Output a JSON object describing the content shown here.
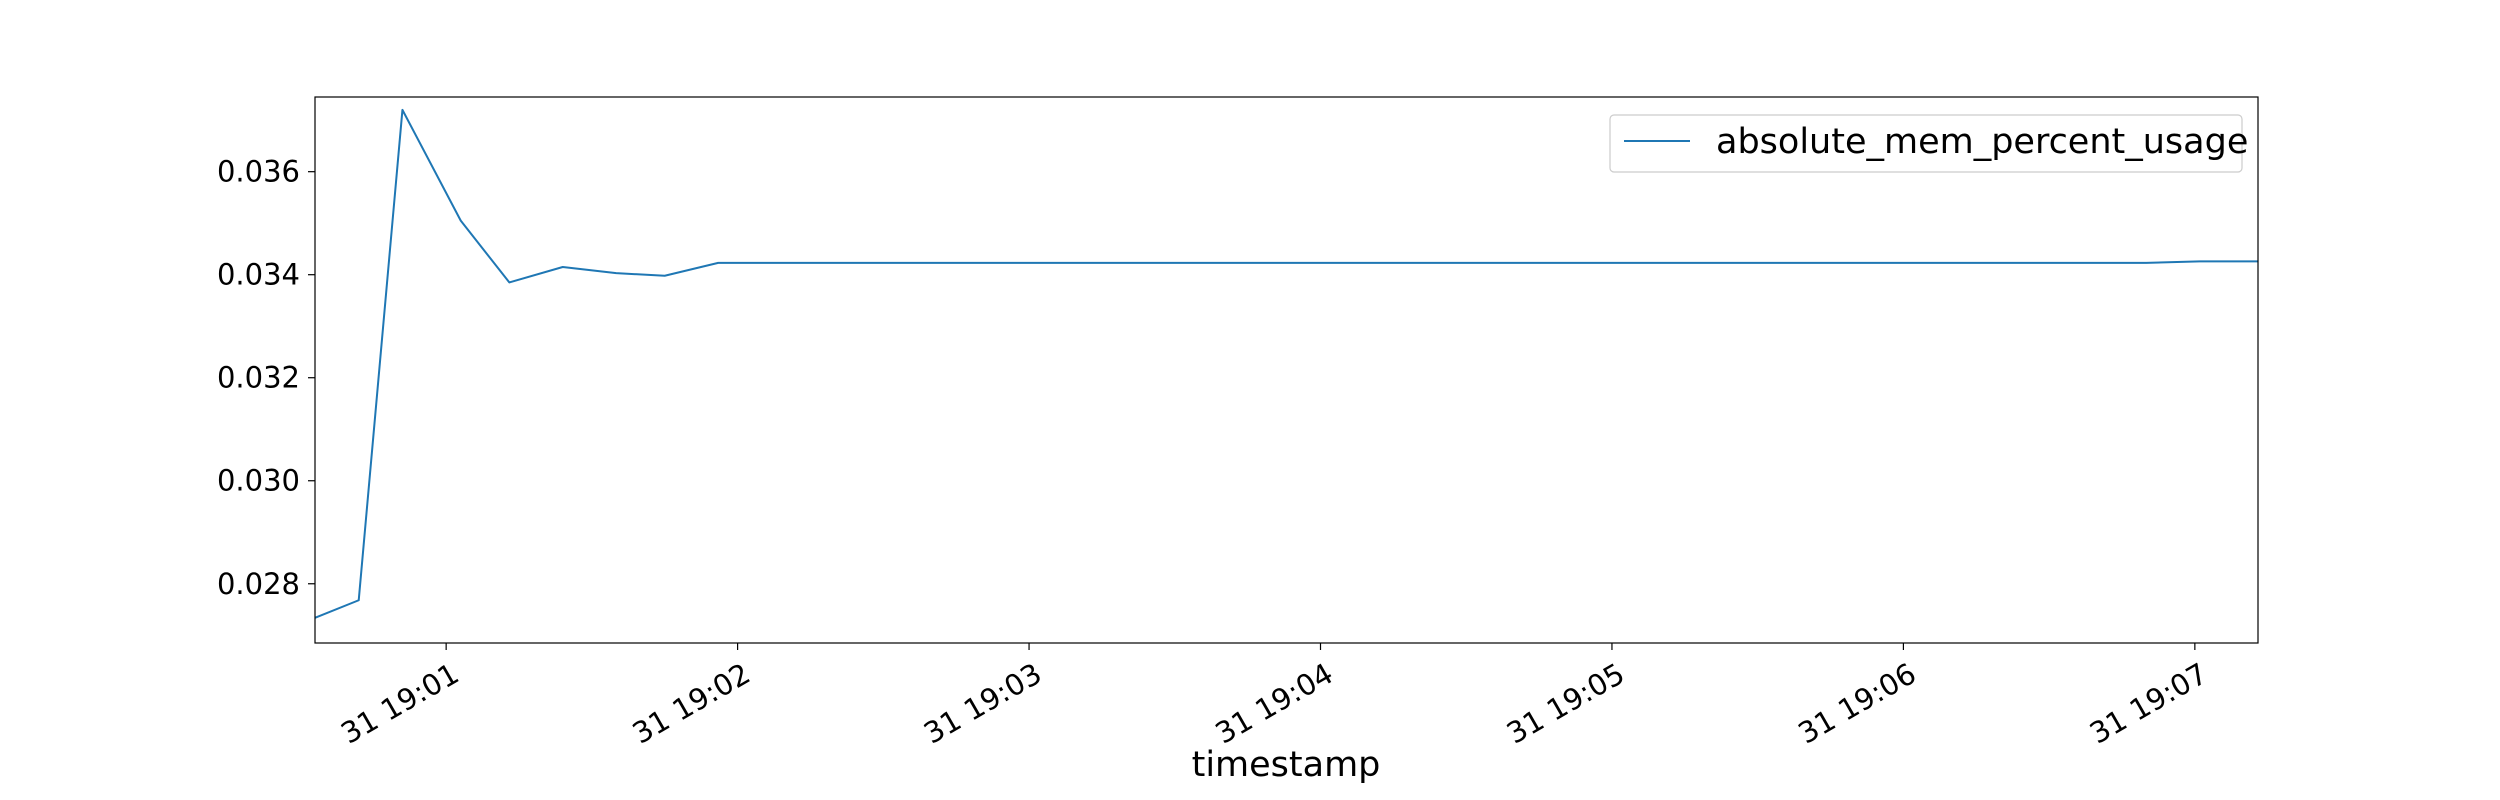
{
  "chart_data": {
    "type": "line",
    "title": "",
    "xlabel": "timestamp",
    "ylabel": "",
    "x_tick_labels": [
      "31 19:01",
      "31 19:02",
      "31 19:03",
      "31 19:04",
      "31 19:05",
      "31 19:06",
      "31 19:07"
    ],
    "x_tick_times": [
      "19:01:00",
      "19:02:00",
      "19:03:00",
      "19:04:00",
      "19:05:00",
      "19:06:00",
      "19:07:00"
    ],
    "y_tick_labels": [
      "0.028",
      "0.030",
      "0.032",
      "0.034",
      "0.036"
    ],
    "xlim": [
      "19:00:33",
      "19:07:13"
    ],
    "ylim": [
      0.02685,
      0.03745
    ],
    "legend_position": "top-right",
    "series": [
      {
        "name": "absolute_mem_percent_usage",
        "color": "#1f77b4",
        "x": [
          "19:00:33",
          "19:00:42",
          "19:00:51",
          "19:01:03",
          "19:01:13",
          "19:01:24",
          "19:01:35",
          "19:01:45",
          "19:01:56",
          "19:02:06",
          "19:06:50",
          "19:07:01",
          "19:07:13"
        ],
        "y": [
          0.02734,
          0.02768,
          0.0372,
          0.03505,
          0.03385,
          0.03415,
          0.03403,
          0.03398,
          0.03423,
          0.03423,
          0.03423,
          0.03426,
          0.03426
        ]
      }
    ]
  }
}
